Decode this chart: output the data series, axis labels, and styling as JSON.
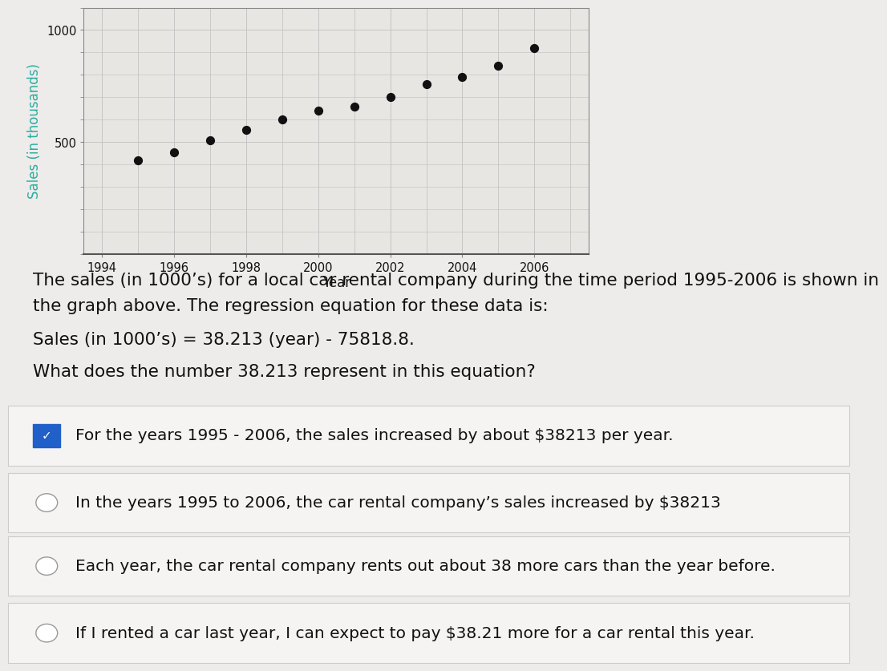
{
  "years": [
    1995,
    1996,
    1997,
    1998,
    1999,
    2000,
    2001,
    2002,
    2003,
    2004,
    2005,
    2006
  ],
  "sales": [
    420,
    455,
    510,
    555,
    600,
    640,
    660,
    700,
    760,
    790,
    840,
    920
  ],
  "xlabel": "Year",
  "ylabel": "Sales (in thousands)",
  "ylabel_color": "#2aada0",
  "xlim": [
    1993.5,
    2007.5
  ],
  "ylim": [
    0,
    1100
  ],
  "yticks": [
    500,
    1000
  ],
  "xticks": [
    1994,
    1996,
    1998,
    2000,
    2002,
    2004,
    2006
  ],
  "dot_color": "#111111",
  "dot_size": 50,
  "grid_color": "#c5c5c5",
  "bg_color": "#edecea",
  "plot_bg_color": "#ffffff",
  "plot_area_bg": "#e8e6e3",
  "title_text1": "The sales (in 1000’s) for a local car rental company during the time period 1995-2006 is shown in",
  "title_text2": "the graph above. The regression equation for these data is:",
  "equation_text": "Sales (in 1000’s) = 38.213 (year) - 75818.8.",
  "question_text": "What does the number 38.213 represent in this equation?",
  "options": [
    "For the years 1995 - 2006, the sales increased by about $38213 per year.",
    "In the years 1995 to 2006, the car rental company’s sales increased by $38213",
    "Each year, the car rental company rents out about 38 more cars than the year before.",
    "If I rented a car last year, I can expect to pay $38.21 more for a car rental this year."
  ],
  "correct_option": 0,
  "checkbox_checked_color": "#2060c8",
  "checkbox_unchecked_color": "#ffffff",
  "checkbox_border_color": "#999999",
  "option_bg_color": "#f5f4f2",
  "option_separator_color": "#cccccc",
  "text_color": "#111111",
  "text_fontsize": 15.5,
  "equation_fontsize": 15.5,
  "question_fontsize": 15.5,
  "option_fontsize": 14.5
}
